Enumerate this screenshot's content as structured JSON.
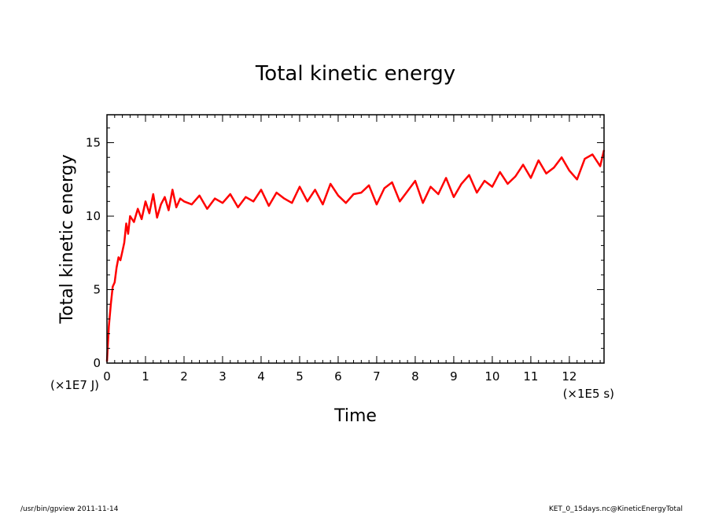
{
  "chart_data": {
    "type": "line",
    "title": "Total kinetic energy",
    "xlabel": "Time",
    "ylabel": "Total kinetic energy",
    "x_unit_label": "(×1E5 s)",
    "y_unit_label": "(×1E7 J)",
    "xlim": [
      0,
      12.9
    ],
    "ylim": [
      0,
      16.9
    ],
    "x_ticks": [
      "0",
      "1",
      "2",
      "3",
      "4",
      "5",
      "6",
      "7",
      "8",
      "9",
      "10",
      "11",
      "12"
    ],
    "y_ticks": [
      "0",
      "5",
      "10",
      "15"
    ],
    "grid": false,
    "series": [
      {
        "color": "#ff0000",
        "x": [
          0,
          0.05,
          0.1,
          0.15,
          0.2,
          0.25,
          0.3,
          0.35,
          0.4,
          0.45,
          0.5,
          0.55,
          0.6,
          0.7,
          0.8,
          0.9,
          1.0,
          1.1,
          1.2,
          1.3,
          1.4,
          1.5,
          1.6,
          1.7,
          1.8,
          1.9,
          2.0,
          2.2,
          2.4,
          2.6,
          2.8,
          3.0,
          3.2,
          3.4,
          3.6,
          3.8,
          4.0,
          4.2,
          4.4,
          4.6,
          4.8,
          5.0,
          5.2,
          5.4,
          5.6,
          5.8,
          6.0,
          6.2,
          6.4,
          6.6,
          6.8,
          7.0,
          7.2,
          7.4,
          7.6,
          7.8,
          8.0,
          8.2,
          8.4,
          8.6,
          8.8,
          9.0,
          9.2,
          9.4,
          9.6,
          9.8,
          10.0,
          10.2,
          10.4,
          10.6,
          10.8,
          11.0,
          11.2,
          11.4,
          11.6,
          11.8,
          12.0,
          12.2,
          12.4,
          12.6,
          12.8,
          12.9
        ],
        "y": [
          0.1,
          2.5,
          4.0,
          5.2,
          5.5,
          6.5,
          7.2,
          7.0,
          7.6,
          8.2,
          9.5,
          8.8,
          10.0,
          9.6,
          10.5,
          9.8,
          11.0,
          10.2,
          11.5,
          9.9,
          10.8,
          11.3,
          10.4,
          11.8,
          10.6,
          11.2,
          11.0,
          10.8,
          11.4,
          10.5,
          11.2,
          10.9,
          11.5,
          10.6,
          11.3,
          11.0,
          11.8,
          10.7,
          11.6,
          11.2,
          10.9,
          12.0,
          11.0,
          11.8,
          10.8,
          12.2,
          11.4,
          10.9,
          11.5,
          11.6,
          12.1,
          10.8,
          11.9,
          12.3,
          11.0,
          11.7,
          12.4,
          10.9,
          12.0,
          11.5,
          12.6,
          11.3,
          12.2,
          12.8,
          11.6,
          12.4,
          12.0,
          13.0,
          12.2,
          12.7,
          13.5,
          12.6,
          13.8,
          12.9,
          13.3,
          14.0,
          13.1,
          12.5,
          13.9,
          14.2,
          13.4,
          14.5
        ]
      }
    ]
  },
  "footer": {
    "left": "/usr/bin/gpview   2011-11-14",
    "right": "KET_0_15days.nc@KineticEnergyTotal"
  }
}
